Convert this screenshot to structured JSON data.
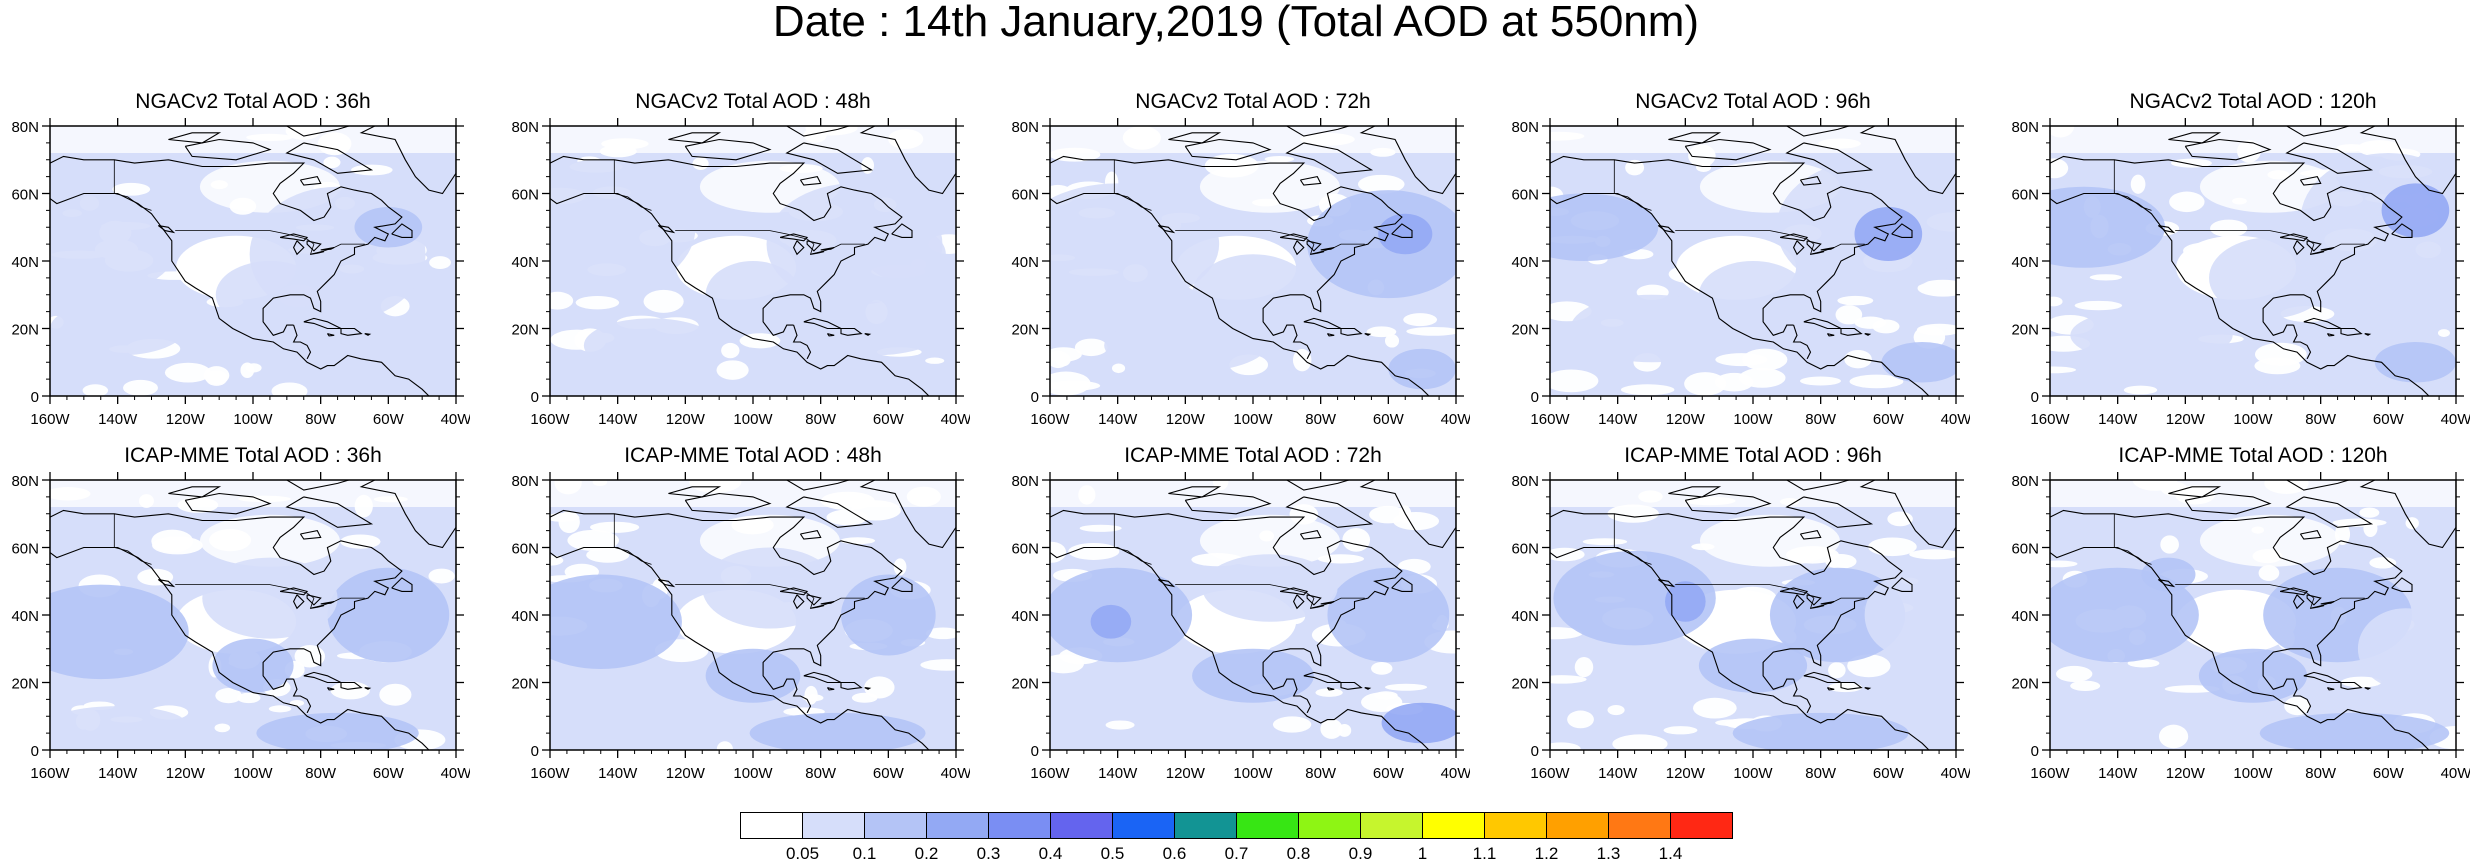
{
  "title": "Date : 14th January,2019 (Total AOD at 550nm)",
  "panels": [
    {
      "title": "NGACv2 Total AOD : 36h",
      "model": "NGACv2",
      "hour": 36
    },
    {
      "title": "NGACv2 Total AOD : 48h",
      "model": "NGACv2",
      "hour": 48
    },
    {
      "title": "NGACv2 Total AOD : 72h",
      "model": "NGACv2",
      "hour": 72
    },
    {
      "title": "NGACv2 Total AOD : 96h",
      "model": "NGACv2",
      "hour": 96
    },
    {
      "title": "NGACv2 Total AOD : 120h",
      "model": "NGACv2",
      "hour": 120
    },
    {
      "title": "ICAP-MME Total AOD : 36h",
      "model": "ICAP-MME",
      "hour": 36
    },
    {
      "title": "ICAP-MME Total AOD : 48h",
      "model": "ICAP-MME",
      "hour": 48
    },
    {
      "title": "ICAP-MME Total AOD : 72h",
      "model": "ICAP-MME",
      "hour": 72
    },
    {
      "title": "ICAP-MME Total AOD : 96h",
      "model": "ICAP-MME",
      "hour": 96
    },
    {
      "title": "ICAP-MME Total AOD : 120h",
      "model": "ICAP-MME",
      "hour": 120
    }
  ],
  "axes": {
    "lat_ticks": [
      "0",
      "20N",
      "40N",
      "60N",
      "80N"
    ],
    "lat_values": [
      0,
      20,
      40,
      60,
      80
    ],
    "lon_ticks": [
      "160W",
      "140W",
      "120W",
      "100W",
      "80W",
      "60W",
      "40W"
    ],
    "lon_values": [
      -160,
      -140,
      -120,
      -100,
      -80,
      -60,
      -40
    ],
    "lon_range": [
      -160,
      -40
    ],
    "lat_range": [
      0,
      80
    ]
  },
  "colorbar": {
    "labels": [
      "0.05",
      "0.1",
      "0.2",
      "0.3",
      "0.4",
      "0.5",
      "0.6",
      "0.7",
      "0.8",
      "0.9",
      "1",
      "1.1",
      "1.2",
      "1.3",
      "1.4"
    ],
    "colors": [
      "#ffffff",
      "#d6defa",
      "#b4c4f6",
      "#93a9f4",
      "#7a8ef3",
      "#6464ee",
      "#1a64f5",
      "#129494",
      "#37e614",
      "#8ef514",
      "#c6f52d",
      "#ffff00",
      "#ffc800",
      "#ffa000",
      "#ff7814",
      "#ff2814"
    ]
  }
}
